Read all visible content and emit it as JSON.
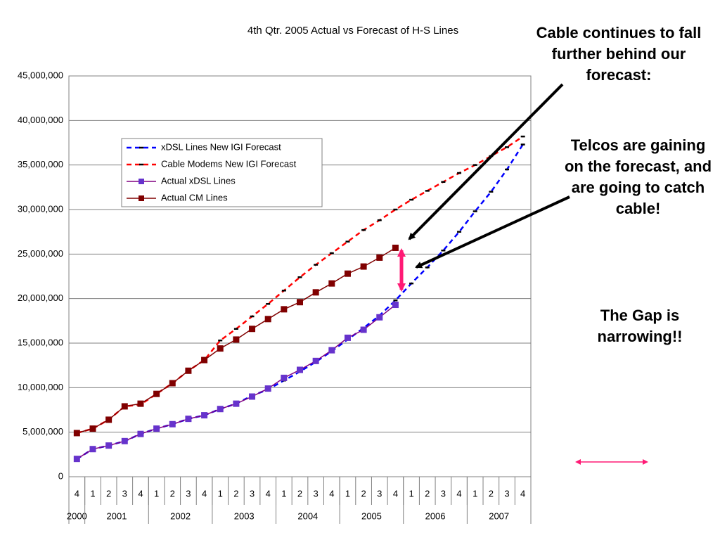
{
  "chart_data": {
    "type": "line",
    "title": "4th Qtr. 2005 Actual vs Forecast of H-S Lines",
    "categories": [
      "4",
      "1",
      "2",
      "3",
      "4",
      "1",
      "2",
      "3",
      "4",
      "1",
      "2",
      "3",
      "4",
      "1",
      "2",
      "3",
      "4",
      "1",
      "2",
      "3",
      "4",
      "1",
      "2",
      "3",
      "4",
      "1",
      "2",
      "3",
      "4"
    ],
    "years": [
      "2000",
      "2001",
      "2002",
      "2003",
      "2004",
      "2005",
      "2006",
      "2007"
    ],
    "ylim": [
      0,
      45000000
    ],
    "yticks": [
      0,
      {
        "value": 5000000,
        "label": "5,000,000"
      },
      {
        "value": 10000000,
        "label": "10,000,000"
      },
      {
        "value": 15000000,
        "label": "15,000,000"
      },
      {
        "value": 20000000,
        "label": "20,000,000"
      },
      {
        "value": 25000000,
        "label": "25,000,000"
      },
      {
        "value": 30000000,
        "label": "30,000,000"
      },
      {
        "value": 35000000,
        "label": "35,000,000"
      },
      {
        "value": 40000000,
        "label": "40,000,000"
      },
      {
        "value": 45000000,
        "label": "45,000,000"
      }
    ],
    "grid": true,
    "series": [
      {
        "name": "xDSL Lines New IGI Forecast",
        "color": "#0000ff",
        "dashed": true,
        "marker": "tick",
        "values": [
          2000000,
          3100000,
          3500000,
          4000000,
          4800000,
          5400000,
          5900000,
          6500000,
          6900000,
          7600000,
          8200000,
          9100000,
          9800000,
          10800000,
          11800000,
          12900000,
          14100000,
          15400000,
          16700000,
          18100000,
          19800000,
          21700000,
          23500000,
          25400000,
          27500000,
          29800000,
          32000000,
          34500000,
          37300000
        ]
      },
      {
        "name": "Cable Modems New IGI Forecast",
        "color": "#ff0000",
        "dashed": true,
        "marker": "tick",
        "values": [
          4900000,
          5400000,
          6400000,
          7900000,
          8100000,
          9300000,
          10500000,
          11900000,
          13100000,
          15300000,
          16600000,
          18000000,
          19400000,
          20900000,
          22400000,
          23800000,
          25100000,
          26400000,
          27700000,
          28800000,
          30000000,
          31100000,
          32100000,
          33100000,
          34100000,
          35000000,
          36000000,
          37000000,
          38200000
        ]
      },
      {
        "name": "Actual xDSL Lines",
        "color": "#800080",
        "marker_color": "#6633cc",
        "dashed": false,
        "marker": "square",
        "values": [
          2000000,
          3100000,
          3500000,
          4000000,
          4800000,
          5400000,
          5900000,
          6500000,
          6900000,
          7600000,
          8200000,
          9000000,
          9900000,
          11100000,
          12000000,
          13000000,
          14200000,
          15600000,
          16500000,
          17900000,
          19300000,
          null,
          null,
          null,
          null,
          null,
          null,
          null,
          null
        ]
      },
      {
        "name": "Actual CM Lines",
        "color": "#800000",
        "marker_color": "#800000",
        "dashed": false,
        "marker": "square",
        "values": [
          4900000,
          5400000,
          6400000,
          7900000,
          8200000,
          9300000,
          10500000,
          11900000,
          13100000,
          14400000,
          15400000,
          16600000,
          17700000,
          18800000,
          19600000,
          20700000,
          21700000,
          22800000,
          23600000,
          24600000,
          25700000,
          null,
          null,
          null,
          null,
          null,
          null,
          null,
          null
        ]
      }
    ],
    "annotations": [
      "Cable continues to fall further behind our forecast:",
      "Telcos are gaining on the forecast, and are going to catch cable!",
      "The Gap is narrowing!!"
    ]
  }
}
